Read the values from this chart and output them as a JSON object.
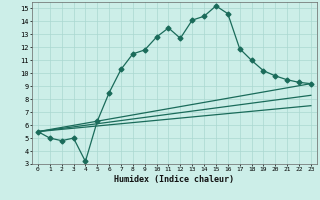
{
  "title": "",
  "xlabel": "Humidex (Indice chaleur)",
  "xlim": [
    -0.5,
    23.5
  ],
  "ylim": [
    3,
    15.5
  ],
  "yticks": [
    3,
    4,
    5,
    6,
    7,
    8,
    9,
    10,
    11,
    12,
    13,
    14,
    15
  ],
  "xticks": [
    0,
    1,
    2,
    3,
    4,
    5,
    6,
    7,
    8,
    9,
    10,
    11,
    12,
    13,
    14,
    15,
    16,
    17,
    18,
    19,
    20,
    21,
    22,
    23
  ],
  "background_color": "#cceee8",
  "grid_color": "#aad8d0",
  "line_color": "#1a6b5a",
  "line1_x": [
    0,
    1,
    2,
    3,
    4,
    5,
    6,
    7,
    8,
    9,
    10,
    11,
    12,
    13,
    14,
    15,
    16,
    17,
    18,
    19,
    20,
    21,
    22,
    23
  ],
  "line1_y": [
    5.5,
    5.0,
    4.8,
    5.0,
    3.2,
    6.3,
    8.5,
    10.3,
    11.5,
    11.8,
    12.8,
    13.5,
    12.7,
    14.1,
    14.4,
    15.2,
    14.6,
    11.9,
    11.0,
    10.2,
    9.8,
    9.5,
    9.3,
    9.2
  ],
  "line2_x": [
    0,
    23
  ],
  "line2_y": [
    5.5,
    9.2
  ],
  "line3_x": [
    0,
    23
  ],
  "line3_y": [
    5.5,
    8.3
  ],
  "line4_x": [
    0,
    23
  ],
  "line4_y": [
    5.5,
    7.5
  ],
  "marker": "D",
  "markersize": 2.5,
  "linewidth": 0.9
}
